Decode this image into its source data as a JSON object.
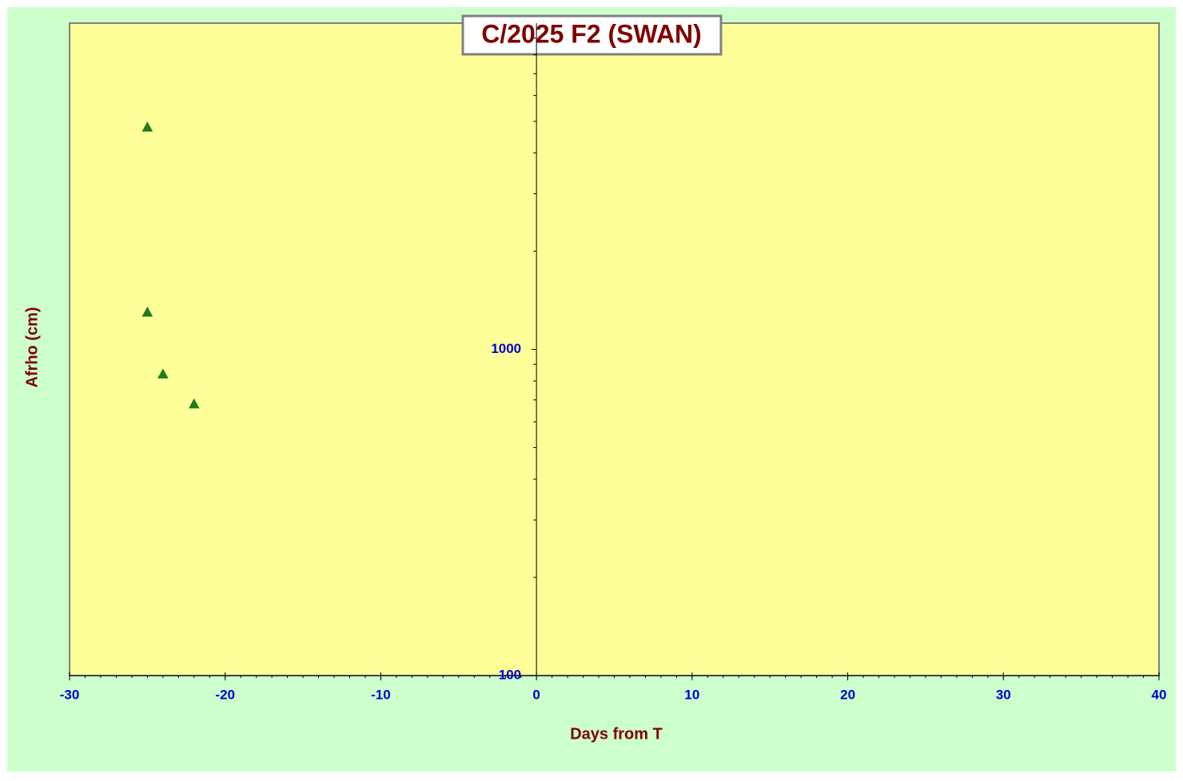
{
  "chart_data": {
    "type": "scatter",
    "title": "C/2025 F2 (SWAN)",
    "x_label": "Days from T",
    "y_label": "Afrho (cm)",
    "series": [
      {
        "color": "#1e7b1e",
        "marker": "triangle",
        "x": [
          -25,
          -25,
          -24,
          -22
        ],
        "values": [
          4800,
          1300,
          840,
          680
        ]
      }
    ],
    "xlim": [
      -30,
      40
    ],
    "xticks": [
      -30,
      -20,
      -10,
      0,
      10,
      20,
      30,
      40
    ],
    "ylim": [
      100,
      10000
    ],
    "yticks": [
      100,
      1000
    ],
    "yminorticks": [
      200,
      300,
      400,
      500,
      600,
      700,
      800,
      900,
      2000,
      3000,
      4000,
      5000,
      6000,
      7000,
      8000,
      9000
    ],
    "ylog": true,
    "grid": false
  }
}
